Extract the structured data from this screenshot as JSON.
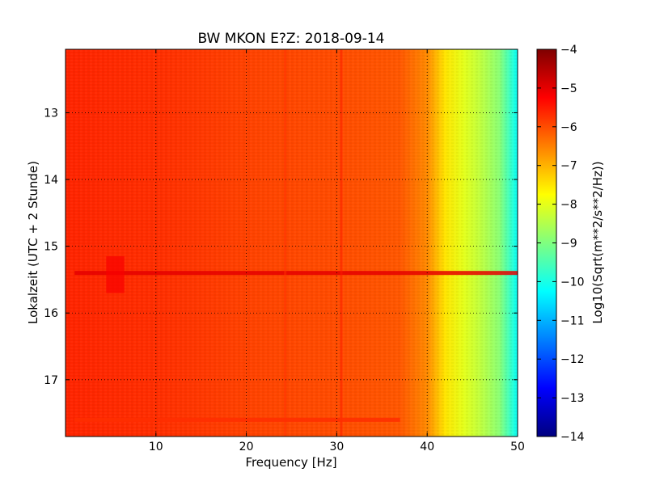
{
  "chart_data": {
    "type": "heatmap",
    "title": "BW MKON E?Z: 2018-09-14",
    "xlabel": "Frequency [Hz]",
    "ylabel": "Lokalzeit (UTC + 2 Stunde)",
    "xlim": [
      0,
      50
    ],
    "ylim": [
      12.05,
      17.85
    ],
    "y_inverted": true,
    "x_ticks": [
      {
        "value": 10,
        "label": "10"
      },
      {
        "value": 20,
        "label": "20"
      },
      {
        "value": 30,
        "label": "30"
      },
      {
        "value": 40,
        "label": "40"
      },
      {
        "value": 50,
        "label": "50"
      }
    ],
    "y_ticks": [
      {
        "value": 13,
        "label": "13"
      },
      {
        "value": 14,
        "label": "14"
      },
      {
        "value": 15,
        "label": "15"
      },
      {
        "value": 16,
        "label": "16"
      },
      {
        "value": 17,
        "label": "17"
      }
    ],
    "grid": true,
    "colormap": "jet",
    "colorbar": {
      "label": "Log10(Sqrt(m**2/s**2/Hz))",
      "range": [
        -14,
        -4
      ],
      "ticks": [
        "-4",
        "-5",
        "-6",
        "-7",
        "-8",
        "-9",
        "-10",
        "-11",
        "-12",
        "-13",
        "-14"
      ]
    },
    "spectral_profile": [
      {
        "freq": 0,
        "value": -5.6
      },
      {
        "freq": 10,
        "value": -5.7
      },
      {
        "freq": 20,
        "value": -5.9
      },
      {
        "freq": 30,
        "value": -6.0
      },
      {
        "freq": 37,
        "value": -6.1
      },
      {
        "freq": 40,
        "value": -6.6
      },
      {
        "freq": 42,
        "value": -7.5
      },
      {
        "freq": 44,
        "value": -8.0
      },
      {
        "freq": 46,
        "value": -8.4
      },
      {
        "freq": 48,
        "value": -8.9
      },
      {
        "freq": 50,
        "value": -10.2
      }
    ],
    "features": [
      {
        "kind": "horizontal-band",
        "time": 15.4,
        "freq_range": [
          1,
          50
        ],
        "value": -5.0
      },
      {
        "kind": "patch",
        "time_range": [
          15.15,
          15.7
        ],
        "freq_range": [
          4.5,
          6.5
        ],
        "value": -5.2
      },
      {
        "kind": "vertical-line",
        "freq": 24.3,
        "value": -5.7
      },
      {
        "kind": "vertical-line",
        "freq": 30.5,
        "value": -5.5
      },
      {
        "kind": "horizontal-band",
        "time": 17.6,
        "freq_range": [
          1,
          37
        ],
        "value": -5.7
      }
    ]
  }
}
